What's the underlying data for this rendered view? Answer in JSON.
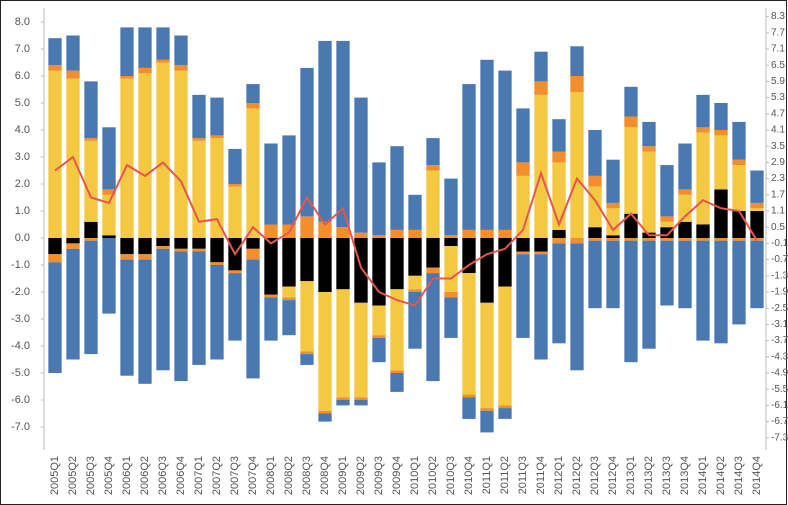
{
  "chart_data": {
    "type": "bar",
    "categories": [
      "2005Q1",
      "2005Q2",
      "2005Q3",
      "2005Q4",
      "2006Q1",
      "2006Q2",
      "2006Q3",
      "2006Q4",
      "2007Q1",
      "2007Q2",
      "2007Q3",
      "2007Q4",
      "2008Q1",
      "2008Q2",
      "2008Q3",
      "2008Q4",
      "2009Q1",
      "2009Q2",
      "2009Q3",
      "2009Q4",
      "2010Q1",
      "2010Q2",
      "2010Q3",
      "2010Q4",
      "2011Q1",
      "2011Q2",
      "2011Q3",
      "2011Q4",
      "2012Q1",
      "2012Q2",
      "2012Q3",
      "2012Q4",
      "2013Q1",
      "2013Q2",
      "2013Q3",
      "2013Q4",
      "2014Q1",
      "2014Q2",
      "2014Q3",
      "2014Q4"
    ],
    "series": [
      {
        "color": "#000000",
        "values": [
          0,
          0,
          0.6,
          0.1,
          0,
          0,
          0,
          0,
          0,
          0,
          0,
          0,
          0,
          0,
          0,
          0,
          0,
          0,
          0,
          0,
          0,
          0,
          0,
          0,
          0,
          0,
          0,
          0,
          0.3,
          0,
          0.4,
          0.1,
          0.9,
          0.2,
          0.4,
          0.6,
          0.5,
          1.8,
          1.0,
          1.0
        ]
      },
      {
        "color": "#f5c842",
        "values": [
          6.2,
          5.9,
          3.0,
          1.5,
          5.9,
          6.1,
          6.5,
          6.2,
          3.6,
          3.7,
          1.9,
          4.8,
          0,
          0,
          0,
          0,
          0,
          0,
          0,
          0,
          0,
          2.5,
          0,
          0,
          0,
          0,
          2.3,
          5.3,
          2.5,
          5.4,
          1.5,
          1.0,
          3.2,
          3.0,
          0.2,
          1.0,
          3.4,
          2.0,
          1.7,
          0.1
        ]
      },
      {
        "color": "#f28e2b",
        "values": [
          0.2,
          0.3,
          0.1,
          0.2,
          0.1,
          0.2,
          0.1,
          0.2,
          0.1,
          0.1,
          0.1,
          0.2,
          0.5,
          0.5,
          0.8,
          0.6,
          0.4,
          0.2,
          0.1,
          0.3,
          0.3,
          0.2,
          0.1,
          0.3,
          0.3,
          0.3,
          0.5,
          0.5,
          0.4,
          0.6,
          0.4,
          0.2,
          0.4,
          0.2,
          0.2,
          0.2,
          0.2,
          0.2,
          0.2,
          0.2
        ]
      },
      {
        "color": "#4a78b0",
        "values": [
          1.0,
          1.3,
          2.1,
          2.3,
          1.8,
          1.5,
          1.2,
          1.1,
          1.6,
          1.4,
          1.3,
          0.7,
          3.0,
          3.3,
          5.5,
          6.7,
          6.9,
          5.0,
          2.7,
          3.1,
          1.3,
          1.0,
          2.1,
          5.4,
          6.3,
          5.9,
          2.0,
          1.1,
          1.2,
          1.1,
          1.7,
          1.6,
          1.1,
          0.9,
          1.9,
          1.7,
          1.2,
          1.0,
          1.4,
          1.2
        ]
      },
      {
        "color": "#000000",
        "values": [
          -0.6,
          -0.2,
          0,
          0,
          -0.6,
          -0.6,
          -0.3,
          -0.4,
          -0.4,
          -0.9,
          -1.2,
          -0.4,
          -2.1,
          -1.8,
          -1.6,
          -2.0,
          -1.9,
          -2.4,
          -2.5,
          -1.9,
          -1.4,
          -1.1,
          -0.3,
          -1.3,
          -2.4,
          -1.8,
          -0.5,
          -0.5,
          0,
          0,
          0,
          0,
          0,
          0,
          0,
          0,
          0,
          0,
          0,
          0
        ]
      },
      {
        "color": "#f5c842",
        "values": [
          0,
          0,
          0,
          0,
          0,
          0,
          0,
          0,
          0,
          0,
          0,
          0,
          0,
          -0.4,
          -2.6,
          -4.4,
          -4.0,
          -3.5,
          -1.1,
          -3.0,
          -0.5,
          0,
          -1.7,
          -4.5,
          -3.9,
          -4.4,
          0,
          0,
          0,
          0,
          0,
          0,
          0,
          0,
          0,
          0,
          0,
          0,
          0,
          0
        ]
      },
      {
        "color": "#f28e2b",
        "values": [
          -0.3,
          -0.2,
          -0.1,
          0,
          -0.2,
          -0.2,
          -0.1,
          -0.1,
          -0.1,
          -0.1,
          -0.1,
          -0.4,
          -0.1,
          -0.1,
          -0.1,
          -0.1,
          -0.1,
          -0.1,
          -0.1,
          -0.1,
          -0.1,
          -0.2,
          -0.2,
          -0.1,
          -0.1,
          -0.1,
          -0.1,
          -0.1,
          -0.2,
          -0.2,
          -0.1,
          -0.1,
          -0.1,
          -0.1,
          -0.1,
          -0.1,
          -0.1,
          -0.1,
          -0.1,
          -0.1
        ]
      },
      {
        "color": "#4a78b0",
        "values": [
          -4.1,
          -4.1,
          -4.2,
          -2.8,
          -4.3,
          -4.6,
          -4.5,
          -4.8,
          -4.2,
          -3.5,
          -2.5,
          -4.4,
          -1.6,
          -1.3,
          -0.4,
          -0.3,
          -0.2,
          -0.2,
          -0.9,
          -0.7,
          -2.1,
          -4.0,
          -1.5,
          -0.8,
          -0.8,
          -0.4,
          -3.1,
          -3.9,
          -3.7,
          -4.7,
          -2.5,
          -2.5,
          -4.5,
          -4.0,
          -2.4,
          -2.5,
          -3.7,
          -3.8,
          -3.1,
          -2.5
        ]
      },
      {
        "type": "line",
        "axis": "y2",
        "color": "#e8554e",
        "values": [
          2.6,
          3.1,
          1.6,
          1.4,
          2.8,
          2.4,
          2.9,
          2.2,
          0.7,
          0.8,
          -0.5,
          0.5,
          -0.1,
          0.3,
          1.6,
          0.6,
          1.2,
          -1.0,
          -1.9,
          -2.2,
          -2.4,
          -1.4,
          -1.4,
          -0.9,
          -0.5,
          -0.3,
          0.4,
          2.5,
          0.6,
          2.3,
          1.5,
          0.4,
          1.0,
          0.2,
          0.2,
          0.9,
          1.5,
          1.2,
          1.1,
          0.0
        ]
      }
    ],
    "ylim": [
      -7.8,
      8.4
    ],
    "yticks": [
      {
        "value": 8,
        "label": "8.0"
      },
      {
        "value": 7,
        "label": "7.0"
      },
      {
        "value": 6,
        "label": "6.0"
      },
      {
        "value": 5,
        "label": "5.0"
      },
      {
        "value": 4,
        "label": "4.0"
      },
      {
        "value": 3,
        "label": "3.0"
      },
      {
        "value": 2,
        "label": "2.0"
      },
      {
        "value": 1,
        "label": "1.0"
      },
      {
        "value": 0,
        "label": "0.0"
      },
      {
        "value": -1,
        "label": "-1.0"
      },
      {
        "value": -2,
        "label": "-2.0"
      },
      {
        "value": -3,
        "label": "-3.0"
      },
      {
        "value": -4,
        "label": "-4.0"
      },
      {
        "value": -5,
        "label": "-5.0"
      },
      {
        "value": -6,
        "label": "-6.0"
      },
      {
        "value": -7,
        "label": "-7.0"
      }
    ],
    "y2lim": [
      -7.7,
      8.5
    ],
    "y2ticks": [
      8.3,
      7.7,
      7.1,
      6.5,
      5.9,
      5.3,
      4.7,
      4.1,
      3.5,
      2.9,
      2.3,
      1.7,
      1.1,
      0.5,
      -0.1,
      -0.7,
      -1.3,
      -1.9,
      -2.5,
      -3.1,
      -3.7,
      -4.3,
      -4.9,
      -5.5,
      -6.1,
      -6.7,
      -7.3
    ],
    "grid": false
  }
}
